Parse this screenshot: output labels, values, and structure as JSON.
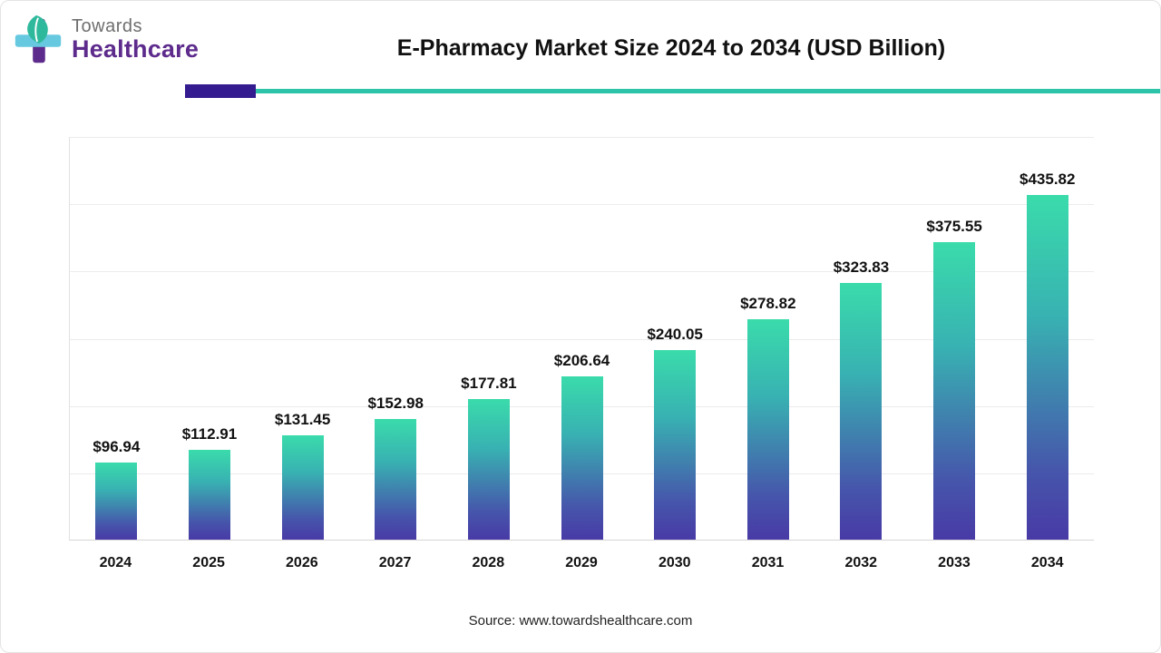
{
  "header": {
    "logo": {
      "top": "Towards",
      "bottom": "Healthcare"
    },
    "title": "E-Pharmacy Market Size 2024 to 2034 (USD Billion)"
  },
  "footer": {
    "source": "Source: www.towardshealthcare.com"
  },
  "colors": {
    "bar_gradient_top": "#3adbab",
    "bar_gradient_bottom": "#483aa6",
    "divider_accent": "#341b8f",
    "divider_line": "#2cc3a9",
    "logo_purple": "#5d2b8c",
    "logo_gray": "#6e6e6e"
  },
  "chart_data": {
    "type": "bar",
    "title": "E-Pharmacy Market Size 2024 to 2034 (USD Billion)",
    "categories": [
      "2024",
      "2025",
      "2026",
      "2027",
      "2028",
      "2029",
      "2030",
      "2031",
      "2032",
      "2033",
      "2034"
    ],
    "values": [
      96.94,
      112.91,
      131.45,
      152.98,
      177.81,
      206.64,
      240.05,
      278.82,
      323.83,
      375.55,
      435.82
    ],
    "value_prefix": "$",
    "xlabel": "",
    "ylabel": "",
    "ylim": [
      0,
      510
    ],
    "grid": true,
    "legend": false
  }
}
